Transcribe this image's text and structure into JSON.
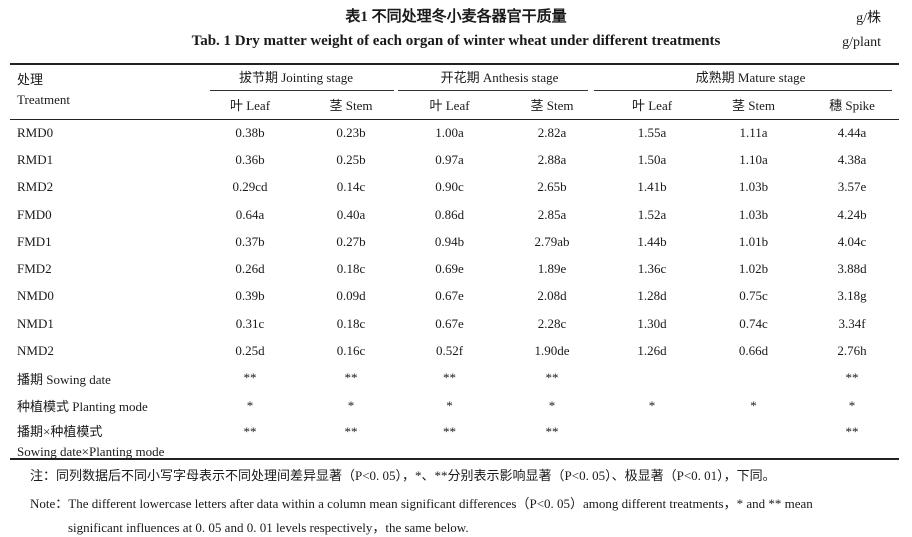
{
  "caption": {
    "cn": "表1   不同处理冬小麦各器官干质量",
    "en": "Tab. 1    Dry matter weight of each organ of winter wheat under different treatments",
    "unit_cn": "g/株",
    "unit_en": "g/plant"
  },
  "header": {
    "treatment_cn": "处理",
    "treatment_en": "Treatment",
    "stages": [
      "拔节期 Jointing stage",
      "开花期 Anthesis stage",
      "成熟期 Mature stage"
    ],
    "organs": [
      "叶 Leaf",
      "茎 Stem",
      "叶 Leaf",
      "茎 Stem",
      "叶 Leaf",
      "茎 Stem",
      "穗 Spike"
    ]
  },
  "rows": [
    {
      "name": "RMD0",
      "values": [
        "0.38b",
        "0.23b",
        "1.00a",
        "2.82a",
        "1.55a",
        "1.11a",
        "4.44a"
      ]
    },
    {
      "name": "RMD1",
      "values": [
        "0.36b",
        "0.25b",
        "0.97a",
        "2.88a",
        "1.50a",
        "1.10a",
        "4.38a"
      ]
    },
    {
      "name": "RMD2",
      "values": [
        "0.29cd",
        "0.14c",
        "0.90c",
        "2.65b",
        "1.41b",
        "1.03b",
        "3.57e"
      ]
    },
    {
      "name": "FMD0",
      "values": [
        "0.64a",
        "0.40a",
        "0.86d",
        "2.85a",
        "1.52a",
        "1.03b",
        "4.24b"
      ]
    },
    {
      "name": "FMD1",
      "values": [
        "0.37b",
        "0.27b",
        "0.94b",
        "2.79ab",
        "1.44b",
        "1.01b",
        "4.04c"
      ]
    },
    {
      "name": "FMD2",
      "values": [
        "0.26d",
        "0.18c",
        "0.69e",
        "1.89e",
        "1.36c",
        "1.02b",
        "3.88d"
      ]
    },
    {
      "name": "NMD0",
      "values": [
        "0.39b",
        "0.09d",
        "0.67e",
        "2.08d",
        "1.28d",
        "0.75c",
        "3.18g"
      ]
    },
    {
      "name": "NMD1",
      "values": [
        "0.31c",
        "0.18c",
        "0.67e",
        "2.28c",
        "1.30d",
        "0.74c",
        "3.34f"
      ]
    },
    {
      "name": "NMD2",
      "values": [
        "0.25d",
        "0.16c",
        "0.52f",
        "1.90de",
        "1.26d",
        "0.66d",
        "2.76h"
      ]
    },
    {
      "name": "播期 Sowing date",
      "values": [
        "**",
        "**",
        "**",
        "**",
        "",
        "",
        "**"
      ]
    },
    {
      "name": "种植模式 Planting mode",
      "values": [
        "*",
        "*",
        "*",
        "*",
        "*",
        "*",
        "*"
      ]
    },
    {
      "name": "播期×种植模式",
      "name2": "Sowing date×Planting mode",
      "values": [
        "**",
        "**",
        "**",
        "**",
        "",
        "",
        "**"
      ]
    }
  ],
  "notes": {
    "cn": "注：同列数据后不同小写字母表示不同处理间差异显著（P<0. 05），*、**分别表示影响显著（P<0. 05）、极显著（P<0. 01），下同。",
    "en1": "Note：The different lowercase letters after data within a column mean significant differences（P<0. 05）among different treatments，* and ** mean",
    "en2": "significant influences at 0. 05 and 0. 01 levels respectively，the same below."
  }
}
